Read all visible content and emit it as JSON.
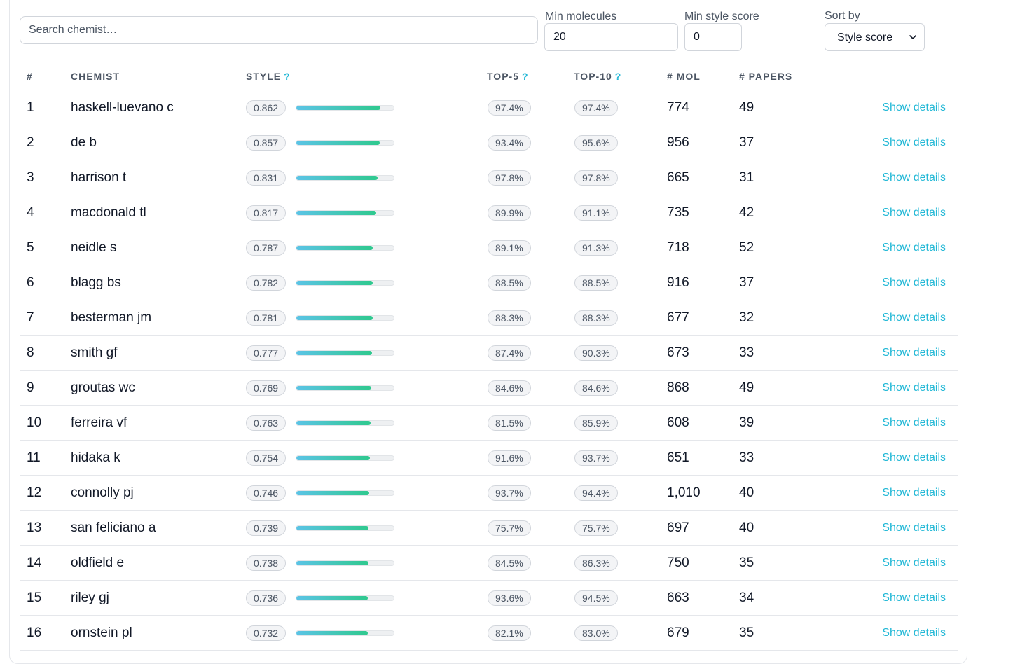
{
  "filters": {
    "search_placeholder": "Search chemist…",
    "min_molecules_label": "Min molecules",
    "min_molecules_value": "20",
    "min_style_label": "Min style score",
    "min_style_value": "0",
    "sort_label": "Sort by",
    "sort_value": "Style score"
  },
  "table": {
    "headers": {
      "rank": "#",
      "chemist": "CHEMIST",
      "style": "STYLE",
      "top5": "TOP-5",
      "top10": "TOP-10",
      "mol": "# MOL",
      "papers": "# PAPERS",
      "help": "?"
    },
    "details_label": "Show details",
    "rows": [
      {
        "rank": "1",
        "name": "haskell-luevano c",
        "style": "0.862",
        "style_fraction": 0.862,
        "top5": "97.4%",
        "top10": "97.4%",
        "mol": "774",
        "papers": "49"
      },
      {
        "rank": "2",
        "name": "de b",
        "style": "0.857",
        "style_fraction": 0.857,
        "top5": "93.4%",
        "top10": "95.6%",
        "mol": "956",
        "papers": "37"
      },
      {
        "rank": "3",
        "name": "harrison t",
        "style": "0.831",
        "style_fraction": 0.831,
        "top5": "97.8%",
        "top10": "97.8%",
        "mol": "665",
        "papers": "31"
      },
      {
        "rank": "4",
        "name": "macdonald tl",
        "style": "0.817",
        "style_fraction": 0.817,
        "top5": "89.9%",
        "top10": "91.1%",
        "mol": "735",
        "papers": "42"
      },
      {
        "rank": "5",
        "name": "neidle s",
        "style": "0.787",
        "style_fraction": 0.787,
        "top5": "89.1%",
        "top10": "91.3%",
        "mol": "718",
        "papers": "52"
      },
      {
        "rank": "6",
        "name": "blagg bs",
        "style": "0.782",
        "style_fraction": 0.782,
        "top5": "88.5%",
        "top10": "88.5%",
        "mol": "916",
        "papers": "37"
      },
      {
        "rank": "7",
        "name": "besterman jm",
        "style": "0.781",
        "style_fraction": 0.781,
        "top5": "88.3%",
        "top10": "88.3%",
        "mol": "677",
        "papers": "32"
      },
      {
        "rank": "8",
        "name": "smith gf",
        "style": "0.777",
        "style_fraction": 0.777,
        "top5": "87.4%",
        "top10": "90.3%",
        "mol": "673",
        "papers": "33"
      },
      {
        "rank": "9",
        "name": "groutas wc",
        "style": "0.769",
        "style_fraction": 0.769,
        "top5": "84.6%",
        "top10": "84.6%",
        "mol": "868",
        "papers": "49"
      },
      {
        "rank": "10",
        "name": "ferreira vf",
        "style": "0.763",
        "style_fraction": 0.763,
        "top5": "81.5%",
        "top10": "85.9%",
        "mol": "608",
        "papers": "39"
      },
      {
        "rank": "11",
        "name": "hidaka k",
        "style": "0.754",
        "style_fraction": 0.754,
        "top5": "91.6%",
        "top10": "93.7%",
        "mol": "651",
        "papers": "33"
      },
      {
        "rank": "12",
        "name": "connolly pj",
        "style": "0.746",
        "style_fraction": 0.746,
        "top5": "93.7%",
        "top10": "94.4%",
        "mol": "1,010",
        "papers": "40"
      },
      {
        "rank": "13",
        "name": "san feliciano a",
        "style": "0.739",
        "style_fraction": 0.739,
        "top5": "75.7%",
        "top10": "75.7%",
        "mol": "697",
        "papers": "40"
      },
      {
        "rank": "14",
        "name": "oldfield e",
        "style": "0.738",
        "style_fraction": 0.738,
        "top5": "84.5%",
        "top10": "86.3%",
        "mol": "750",
        "papers": "35"
      },
      {
        "rank": "15",
        "name": "riley gj",
        "style": "0.736",
        "style_fraction": 0.736,
        "top5": "93.6%",
        "top10": "94.5%",
        "mol": "663",
        "papers": "34"
      },
      {
        "rank": "16",
        "name": "ornstein pl",
        "style": "0.732",
        "style_fraction": 0.732,
        "top5": "82.1%",
        "top10": "83.0%",
        "mol": "679",
        "papers": "35"
      }
    ]
  },
  "colors": {
    "accent": "#22b8d6",
    "bar_start": "#5bc4e6",
    "bar_end": "#2fc98e"
  }
}
